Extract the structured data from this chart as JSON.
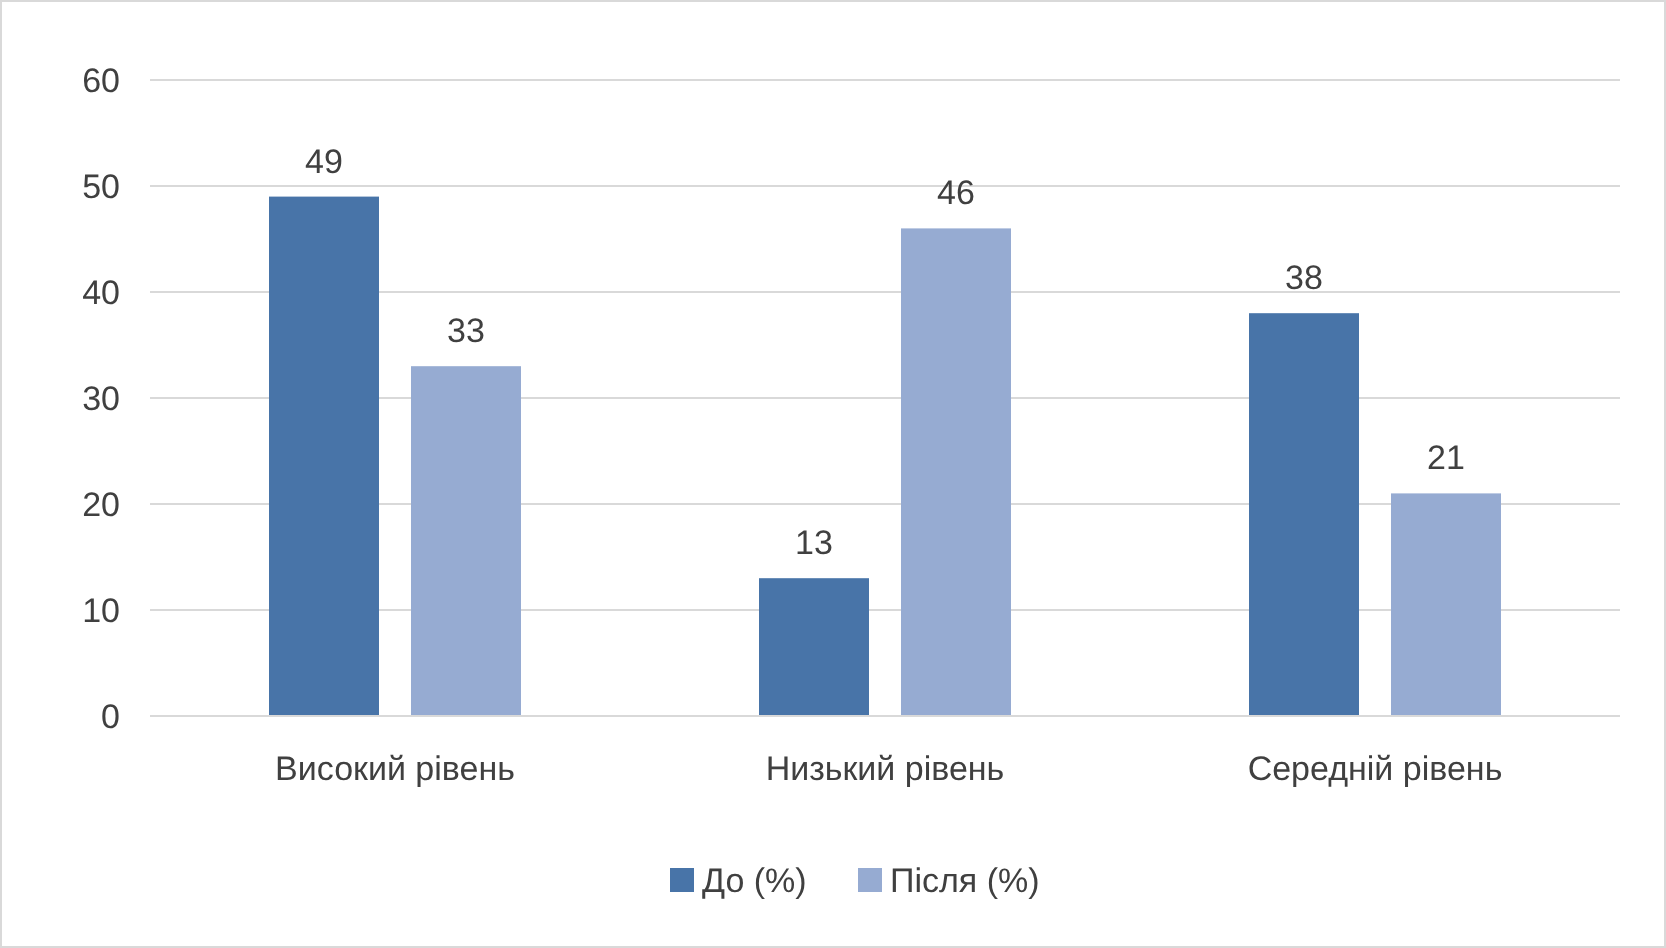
{
  "chart_data": {
    "type": "bar",
    "categories": [
      "Високий рівень",
      "Низький рівень",
      "Середній рівень"
    ],
    "series": [
      {
        "name": "До (%)",
        "color": "#4874a8",
        "values": [
          49,
          13,
          38
        ]
      },
      {
        "name": "Після (%)",
        "color": "#96abd2",
        "values": [
          33,
          46,
          21
        ]
      }
    ],
    "ylim": [
      0,
      60
    ],
    "yticks": [
      0,
      10,
      20,
      30,
      40,
      50,
      60
    ],
    "grid": "y",
    "legend": "bottom",
    "data_labels": true
  }
}
